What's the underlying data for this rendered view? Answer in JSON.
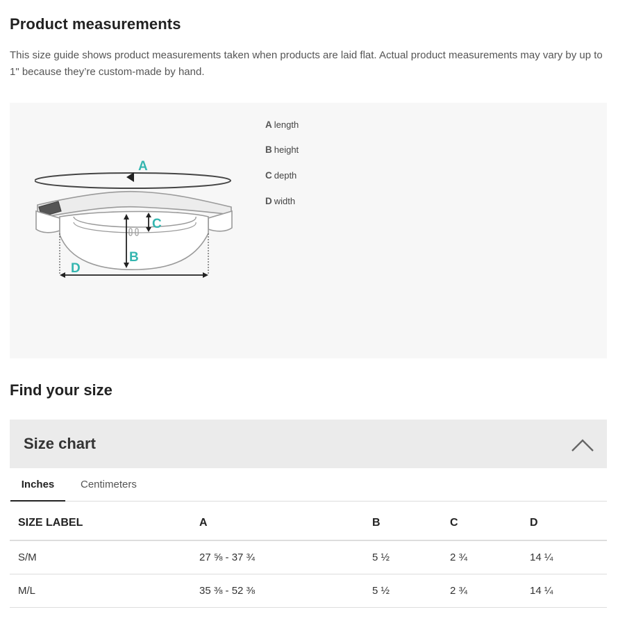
{
  "measurements": {
    "title": "Product measurements",
    "intro": "This size guide shows product measurements taken when products are laid flat. Actual product measurements may vary by up to 1\" because they’re custom-made by hand.",
    "diagram_letters": [
      "A",
      "B",
      "C",
      "D"
    ],
    "legend": [
      {
        "letter": "A",
        "text": "length"
      },
      {
        "letter": "B",
        "text": "height"
      },
      {
        "letter": "C",
        "text": "depth"
      },
      {
        "letter": "D",
        "text": "width"
      }
    ],
    "colors": {
      "panel_bg": "#f7f7f7",
      "accent_letters": "#35b6b0",
      "outline": "#9a9a9a",
      "arrow": "#222222"
    }
  },
  "find_size": {
    "title": "Find your size",
    "chart_title": "Size chart",
    "chevron_icon": "chevron-up-icon",
    "tabs": [
      {
        "label": "Inches",
        "active": true
      },
      {
        "label": "Centimeters",
        "active": false
      }
    ],
    "table": {
      "headers": [
        "SIZE LABEL",
        "A",
        "B",
        "C",
        "D"
      ],
      "rows": [
        [
          "S/M",
          "27 ⅝ - 37 ¾",
          "5 ½",
          "2 ¾",
          "14 ¼"
        ],
        [
          "M/L",
          "35 ⅜ - 52 ⅜",
          "5 ½",
          "2 ¾",
          "14 ¼"
        ]
      ]
    }
  }
}
